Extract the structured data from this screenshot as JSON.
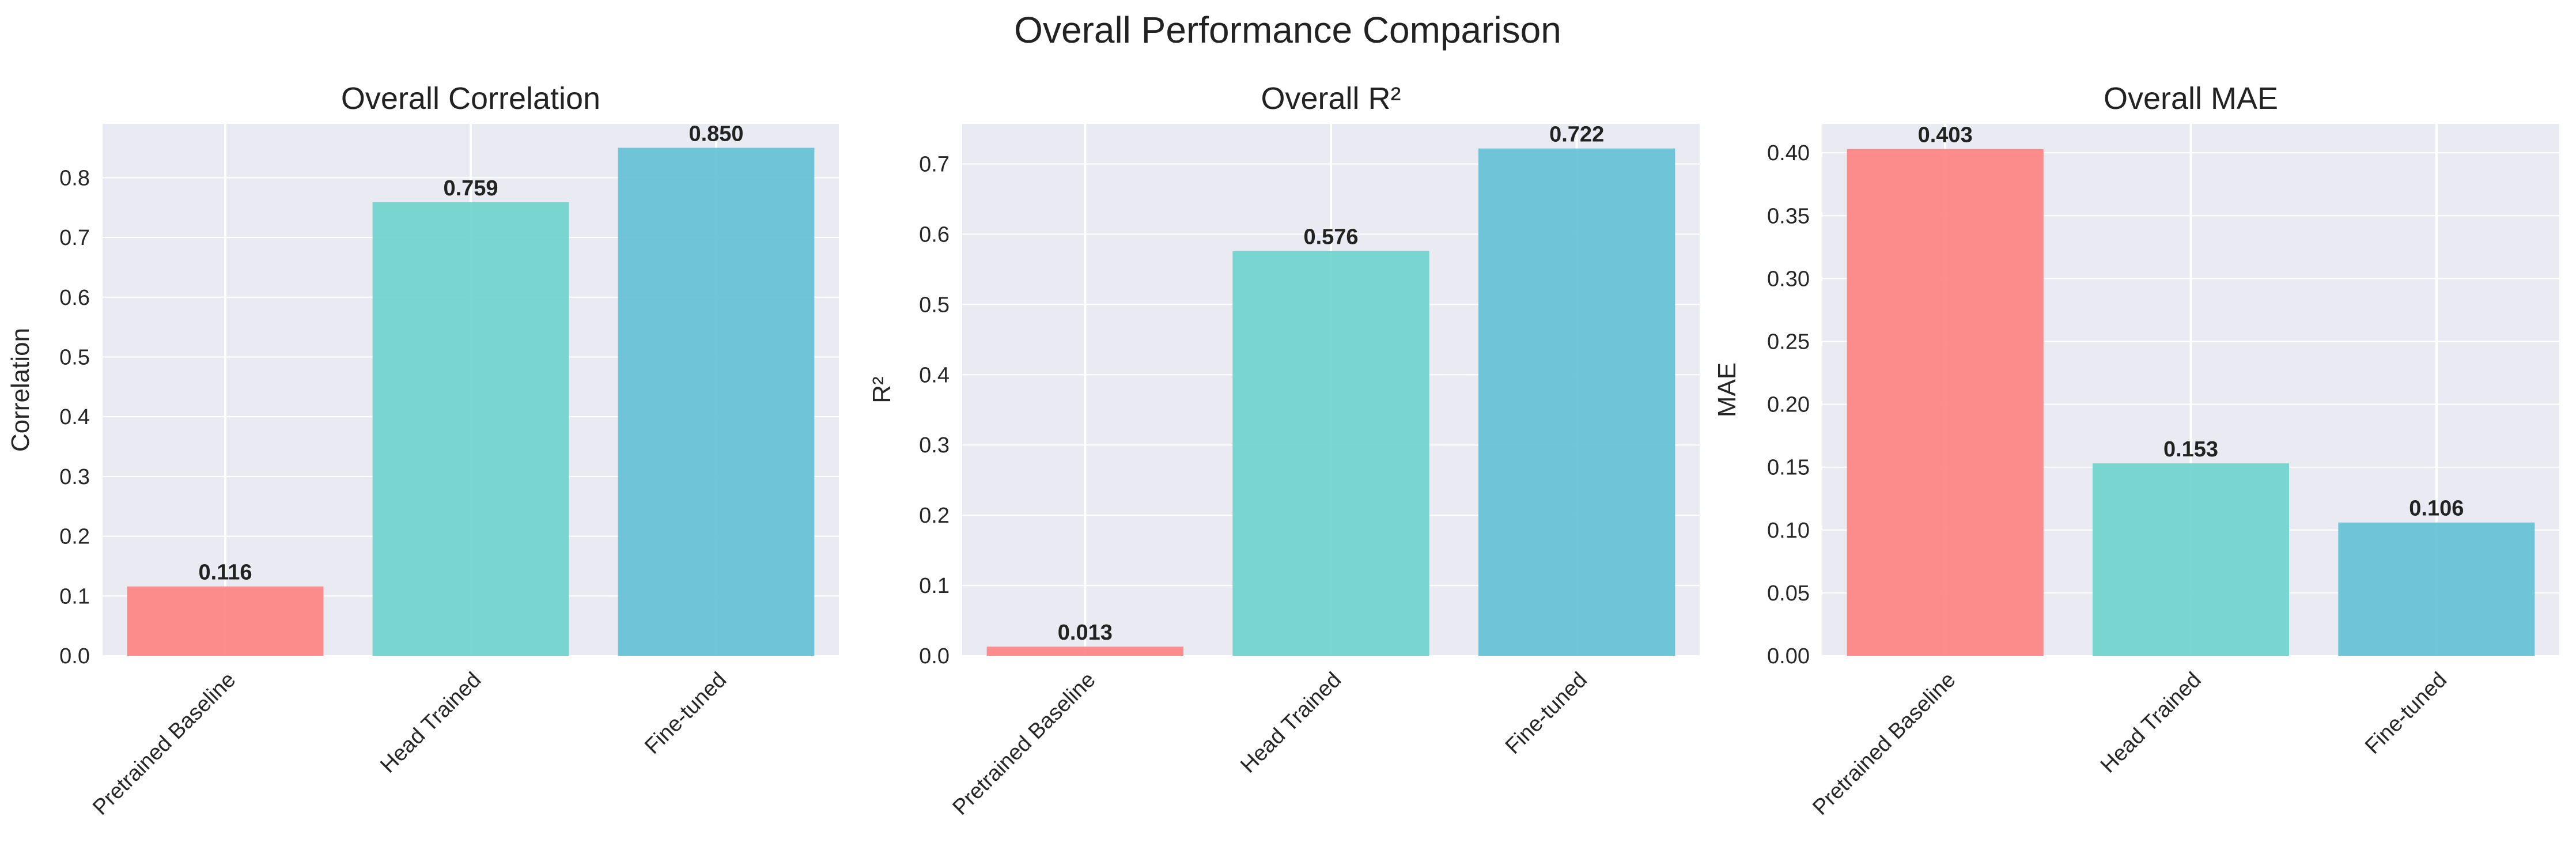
{
  "figure": {
    "suptitle": "Overall Performance Comparison"
  },
  "colors": {
    "pretrained_baseline": "#fd8686",
    "head_trained": "#72d4cd",
    "fine_tuned": "#68c2d6",
    "plot_background": "#eaeaf2",
    "grid": "#ffffff"
  },
  "chart_data": [
    {
      "type": "bar",
      "title": "Overall Correlation",
      "xlabel": "",
      "ylabel": "Correlation",
      "categories": [
        "Pretrained Baseline",
        "Head Trained",
        "Fine-tuned"
      ],
      "values": [
        0.116,
        0.759,
        0.85
      ],
      "value_labels": [
        "0.116",
        "0.759",
        "0.850"
      ],
      "ylim": [
        0,
        0.89
      ],
      "yticks": [
        0.0,
        0.1,
        0.2,
        0.3,
        0.4,
        0.5,
        0.6,
        0.7,
        0.8
      ],
      "ytick_labels": [
        "0.0",
        "0.1",
        "0.2",
        "0.3",
        "0.4",
        "0.5",
        "0.6",
        "0.7",
        "0.8"
      ],
      "grid": true
    },
    {
      "type": "bar",
      "title": "Overall R²",
      "xlabel": "",
      "ylabel": "R²",
      "categories": [
        "Pretrained Baseline",
        "Head Trained",
        "Fine-tuned"
      ],
      "values": [
        0.013,
        0.576,
        0.722
      ],
      "value_labels": [
        "0.013",
        "0.576",
        "0.722"
      ],
      "ylim": [
        0,
        0.757
      ],
      "yticks": [
        0.0,
        0.1,
        0.2,
        0.3,
        0.4,
        0.5,
        0.6,
        0.7
      ],
      "ytick_labels": [
        "0.0",
        "0.1",
        "0.2",
        "0.3",
        "0.4",
        "0.5",
        "0.6",
        "0.7"
      ],
      "grid": true
    },
    {
      "type": "bar",
      "title": "Overall MAE",
      "xlabel": "",
      "ylabel": "MAE",
      "categories": [
        "Pretrained Baseline",
        "Head Trained",
        "Fine-tuned"
      ],
      "values": [
        0.403,
        0.153,
        0.106
      ],
      "value_labels": [
        "0.403",
        "0.153",
        "0.106"
      ],
      "ylim": [
        0,
        0.423
      ],
      "yticks": [
        0.0,
        0.05,
        0.1,
        0.15,
        0.2,
        0.25,
        0.3,
        0.35,
        0.4
      ],
      "ytick_labels": [
        "0.00",
        "0.05",
        "0.10",
        "0.15",
        "0.20",
        "0.25",
        "0.30",
        "0.35",
        "0.40"
      ],
      "grid": true
    }
  ]
}
